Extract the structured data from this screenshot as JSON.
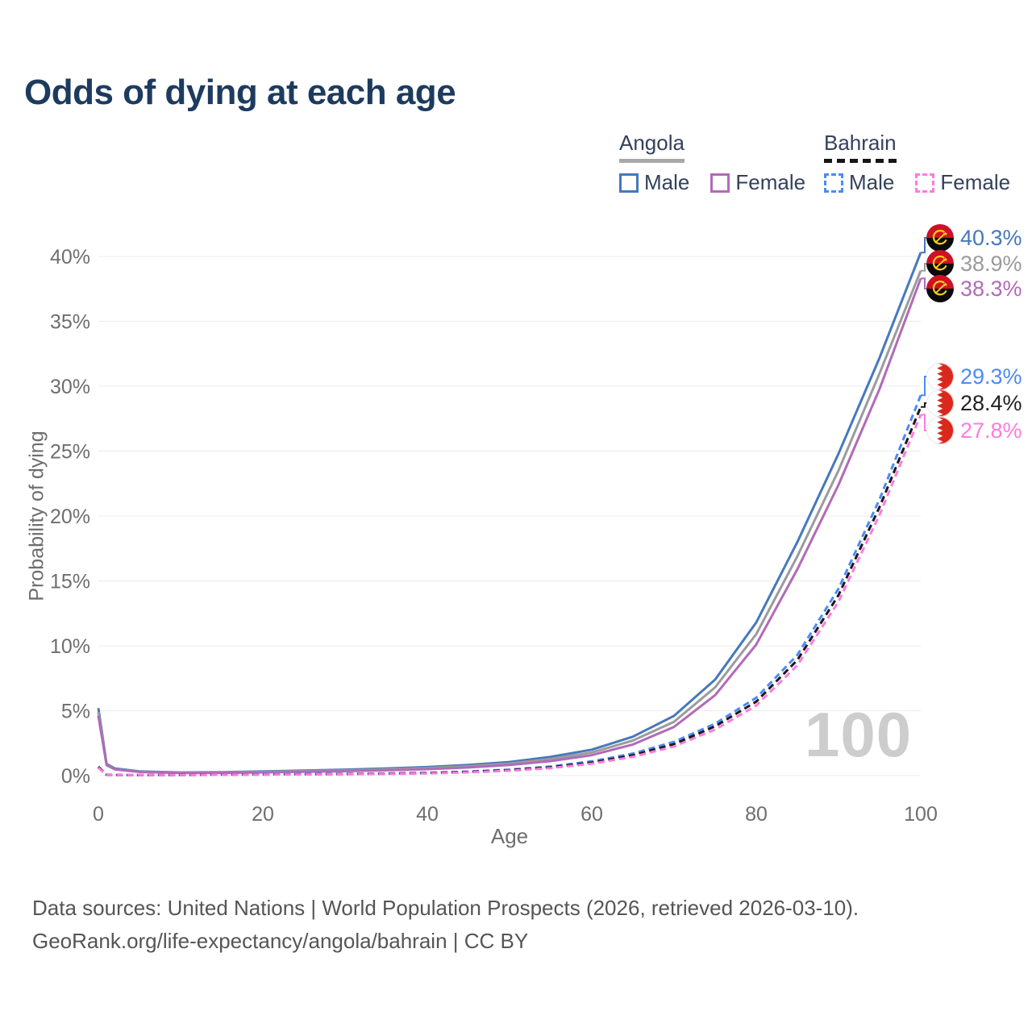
{
  "title": "Odds of dying at each age",
  "legend": {
    "groups": [
      {
        "country": "Angola",
        "line_style": "solid",
        "underline_color": "#a8a8a8",
        "items": [
          {
            "label": "Male",
            "color": "#4678bd",
            "dashed": false
          },
          {
            "label": "Female",
            "color": "#b26ab8",
            "dashed": false
          }
        ]
      },
      {
        "country": "Bahrain",
        "line_style": "dashed",
        "underline_color": "#161616",
        "items": [
          {
            "label": "Male",
            "color": "#4b8bf4",
            "dashed": true
          },
          {
            "label": "Female",
            "color": "#ff7ae0",
            "dashed": true
          }
        ]
      }
    ]
  },
  "chart_data": {
    "type": "line",
    "title": "Odds of dying at each age",
    "xlabel": "Age",
    "ylabel": "Probability of dying",
    "xlim": [
      0,
      100
    ],
    "ylim": [
      0,
      40
    ],
    "x_ticks": [
      0,
      20,
      40,
      60,
      80,
      100
    ],
    "y_ticks": [
      {
        "value": 0,
        "label": "0%"
      },
      {
        "value": 5,
        "label": "5%"
      },
      {
        "value": 10,
        "label": "10%"
      },
      {
        "value": 15,
        "label": "15%"
      },
      {
        "value": 20,
        "label": "20%"
      },
      {
        "value": 25,
        "label": "25%"
      },
      {
        "value": 30,
        "label": "30%"
      },
      {
        "value": 35,
        "label": "35%"
      },
      {
        "value": 40,
        "label": "40%"
      }
    ],
    "grid": true,
    "legend_position": "top-right",
    "watermark": "100",
    "x": [
      0,
      1,
      2,
      5,
      10,
      15,
      20,
      25,
      30,
      35,
      40,
      45,
      50,
      55,
      60,
      65,
      70,
      75,
      80,
      85,
      90,
      95,
      100
    ],
    "series": [
      {
        "name": "Angola Male",
        "country": "Angola",
        "sex": "Male",
        "color": "#4678bd",
        "label_color": "#4678bd",
        "dashed": false,
        "end_label": "40.3%",
        "end_value": 40.3,
        "values": [
          5.2,
          0.9,
          0.55,
          0.32,
          0.24,
          0.27,
          0.33,
          0.39,
          0.46,
          0.55,
          0.66,
          0.82,
          1.05,
          1.45,
          2.0,
          3.0,
          4.6,
          7.4,
          11.8,
          18.0,
          24.8,
          32.2,
          40.3
        ]
      },
      {
        "name": "Angola Both sexes",
        "country": "Angola",
        "sex": "Both",
        "color": "#9b9b9b",
        "label_color": "#9b9b9b",
        "dashed": false,
        "end_label": "38.9%",
        "end_value": 38.9,
        "values": [
          4.9,
          0.85,
          0.5,
          0.3,
          0.22,
          0.24,
          0.29,
          0.34,
          0.4,
          0.48,
          0.58,
          0.72,
          0.93,
          1.28,
          1.78,
          2.7,
          4.15,
          6.8,
          10.9,
          16.9,
          23.5,
          31.0,
          38.9
        ]
      },
      {
        "name": "Angola Female",
        "country": "Angola",
        "sex": "Female",
        "color": "#b26ab8",
        "label_color": "#b26ab8",
        "dashed": false,
        "end_label": "38.3%",
        "end_value": 38.3,
        "values": [
          4.6,
          0.8,
          0.48,
          0.28,
          0.2,
          0.21,
          0.25,
          0.29,
          0.34,
          0.41,
          0.5,
          0.63,
          0.82,
          1.12,
          1.58,
          2.4,
          3.75,
          6.2,
          10.1,
          15.9,
          22.4,
          29.8,
          38.3
        ]
      },
      {
        "name": "Bahrain Male",
        "country": "Bahrain",
        "sex": "Male",
        "color": "#4b8bf4",
        "label_color": "#4b8bf4",
        "dashed": true,
        "end_label": "29.3%",
        "end_value": 29.3,
        "values": [
          0.7,
          0.06,
          0.05,
          0.04,
          0.05,
          0.08,
          0.11,
          0.12,
          0.14,
          0.17,
          0.22,
          0.31,
          0.46,
          0.7,
          1.1,
          1.7,
          2.6,
          4.0,
          6.0,
          9.3,
          14.4,
          21.3,
          29.3
        ]
      },
      {
        "name": "Bahrain Both sexes",
        "country": "Bahrain",
        "sex": "Both",
        "color": "#1a1a1a",
        "label_color": "#222222",
        "dashed": true,
        "end_label": "28.4%",
        "end_value": 28.4,
        "values": [
          0.65,
          0.055,
          0.045,
          0.04,
          0.045,
          0.07,
          0.09,
          0.1,
          0.12,
          0.15,
          0.2,
          0.28,
          0.42,
          0.64,
          1.0,
          1.57,
          2.42,
          3.8,
          5.7,
          8.9,
          13.9,
          20.7,
          28.4
        ]
      },
      {
        "name": "Bahrain Female",
        "country": "Bahrain",
        "sex": "Female",
        "color": "#ff7ae0",
        "label_color": "#ff7ae0",
        "dashed": true,
        "end_label": "27.8%",
        "end_value": 27.8,
        "values": [
          0.6,
          0.05,
          0.04,
          0.035,
          0.04,
          0.06,
          0.08,
          0.09,
          0.11,
          0.13,
          0.17,
          0.25,
          0.38,
          0.58,
          0.92,
          1.45,
          2.25,
          3.55,
          5.4,
          8.5,
          13.4,
          20.1,
          27.8
        ]
      }
    ],
    "flag_colors": {
      "angola_red": "#cf1126",
      "angola_black": "#0a0a0a",
      "angola_yellow": "#fcd116",
      "bahrain_red": "#da291c",
      "bahrain_white": "#ffffff"
    }
  },
  "footer": {
    "line1": "Data sources: United Nations | World Population Prospects (2026, retrieved 2026-03-10).",
    "line2": "GeoRank.org/life-expectancy/angola/bahrain | CC BY"
  }
}
